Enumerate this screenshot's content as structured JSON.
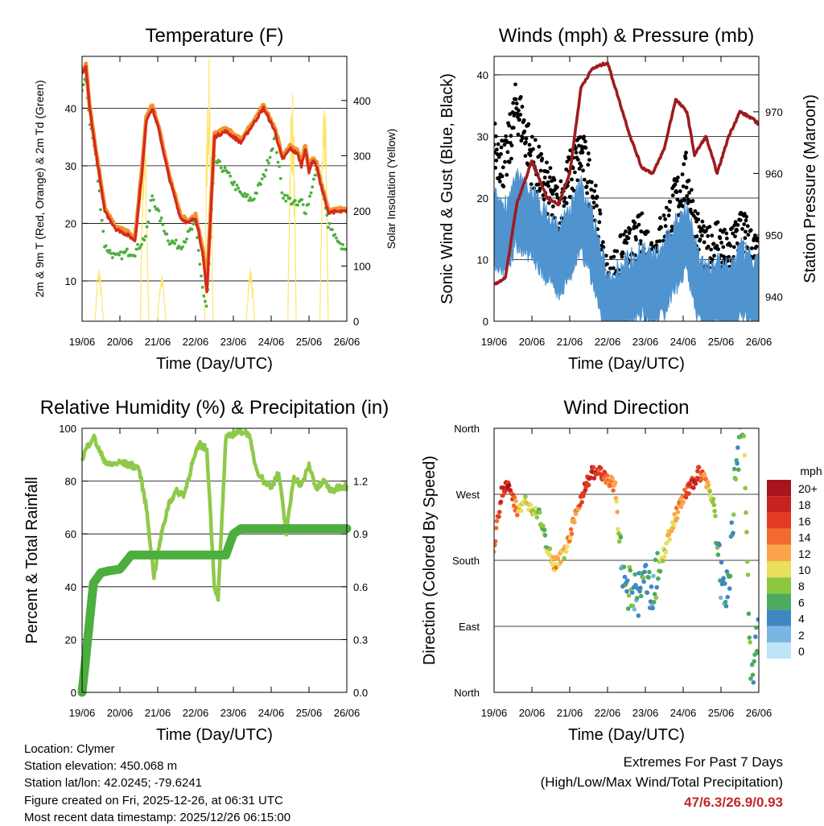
{
  "info": {
    "location": "Location: Clymer",
    "elevation": "Station elevation: 450.068 m",
    "latlon": "Station lat/lon: 42.0245; -79.6241",
    "created": "Figure created on Fri, 2025-12-26, at 06:31 UTC",
    "recent": "Most recent data timestamp: 2025/12/26 06:15:00"
  },
  "extremes": {
    "title": "Extremes For Past 7 Days",
    "subtitle": "(High/Low/Max Wind/Total Precipitation)",
    "values": "47/6.3/26.9/0.93"
  },
  "colors": {
    "red": "#d42a20",
    "orange": "#f2932e",
    "green": "#4caf3c",
    "yellow": "#ffe566",
    "black": "#000000",
    "blue": "#4f93cf",
    "maroon": "#9c1c1f",
    "rh": "#8fc94a",
    "precip": "#4cae3e",
    "extremes": "#c0272d"
  },
  "chart_data": [
    {
      "type": "line",
      "title": "Temperature (F)",
      "xlabel": "Time (Day/UTC)",
      "ylabel": "2m & 9m T (Red, Orange) & 2m Td (Green)",
      "ylabel_right": "Solar Insolation (Yellow)",
      "x": [
        0,
        0.1,
        0.2,
        0.35,
        0.6,
        0.9,
        1.2,
        1.4,
        1.6,
        1.7,
        1.85,
        2.0,
        2.3,
        2.6,
        2.8,
        3.0,
        3.1,
        3.2,
        3.3,
        3.5,
        3.8,
        4.2,
        4.5,
        4.8,
        5.1,
        5.3,
        5.5,
        5.7,
        5.8,
        5.9,
        6.0,
        6.1,
        6.2,
        6.3,
        6.5,
        6.8,
        7.0
      ],
      "xticks": [
        "19/06",
        "20/06",
        "21/06",
        "22/06",
        "23/06",
        "24/06",
        "25/06",
        "26/06"
      ],
      "ylim": [
        3,
        49
      ],
      "yticks": [
        10,
        20,
        30,
        40
      ],
      "y2lim": [
        0,
        480
      ],
      "y2ticks": [
        0,
        100,
        200,
        300,
        400
      ],
      "series": [
        {
          "name": "2m T",
          "color": "red",
          "values": [
            46,
            47,
            40,
            33,
            22,
            19,
            18,
            17,
            30,
            38,
            40,
            37,
            28,
            21,
            20,
            21,
            18,
            14,
            8,
            35,
            36,
            34,
            37,
            40,
            36,
            31,
            33,
            32,
            30,
            33,
            29,
            31,
            30,
            27,
            22,
            22,
            22
          ]
        },
        {
          "name": "9m T",
          "color": "orange",
          "values": [
            46.5,
            47.5,
            40.5,
            33.5,
            22.5,
            19.5,
            18.5,
            17.5,
            30.5,
            38.5,
            40.5,
            37.5,
            28.5,
            21.5,
            20.5,
            21.5,
            18.5,
            15,
            9,
            35.5,
            36.5,
            34.5,
            37.5,
            40.5,
            36.5,
            31.5,
            33.5,
            32.5,
            30.5,
            33.5,
            29.5,
            31.5,
            30.5,
            27.5,
            22.5,
            22.5,
            22.5
          ]
        },
        {
          "name": "2m Td",
          "color": "green",
          "values": [
            43,
            45,
            38,
            32,
            16,
            14,
            15,
            15,
            17,
            18,
            25,
            22,
            17,
            16,
            18,
            20,
            14,
            8,
            5,
            31,
            29,
            25,
            24,
            28,
            35,
            25,
            24,
            23,
            24,
            22,
            24,
            27,
            29,
            28,
            20,
            16,
            16
          ]
        }
      ],
      "solar": [
        {
          "peak_x": 0.45,
          "peak": 100
        },
        {
          "peak_x": 1.65,
          "peak": 360
        },
        {
          "peak_x": 2.1,
          "peak": 90
        },
        {
          "peak_x": 3.35,
          "peak": 480
        },
        {
          "peak_x": 4.45,
          "peak": 100
        },
        {
          "peak_x": 5.55,
          "peak": 440
        },
        {
          "peak_x": 6.4,
          "peak": 430
        }
      ]
    },
    {
      "type": "scatter",
      "title": "Winds (mph) & Pressure (mb)",
      "xlabel": "Time (Day/UTC)",
      "ylabel": "Sonic Wind & Gust (Blue, Black)",
      "ylabel_right": "Station Pressure (Maroon)",
      "x": [
        0,
        0.3,
        0.6,
        1.0,
        1.4,
        1.7,
        2.0,
        2.3,
        2.6,
        3.0,
        3.3,
        3.6,
        3.9,
        4.2,
        4.5,
        4.8,
        5.1,
        5.3,
        5.6,
        5.9,
        6.2,
        6.5,
        6.8,
        7.0
      ],
      "xticks": [
        "19/06",
        "20/06",
        "21/06",
        "22/06",
        "23/06",
        "24/06",
        "25/06",
        "26/06"
      ],
      "ylim": [
        0,
        43
      ],
      "yticks": [
        0,
        10,
        20,
        30,
        40
      ],
      "y2lim": [
        936,
        979
      ],
      "y2ticks": [
        940,
        950,
        960,
        970
      ],
      "series": [
        {
          "name": "Gust",
          "color": "black",
          "values": [
            27,
            24,
            34,
            25,
            20,
            17,
            22,
            26,
            20,
            4,
            8,
            10,
            12,
            9,
            13,
            18,
            22,
            14,
            9,
            12,
            8,
            14,
            10,
            8
          ]
        },
        {
          "name": "Wind",
          "color": "blue",
          "values": [
            15,
            14,
            18,
            16,
            12,
            10,
            13,
            17,
            12,
            2,
            4,
            5,
            7,
            5,
            7,
            11,
            14,
            8,
            3,
            5,
            3,
            7,
            5,
            4
          ]
        },
        {
          "name": "Pressure",
          "color": "maroon",
          "values": [
            942,
            943,
            955,
            962,
            956,
            955,
            960,
            974,
            977,
            978,
            972,
            966,
            961,
            960,
            964,
            972,
            970,
            963,
            966,
            960,
            966,
            970,
            969,
            968
          ]
        }
      ]
    },
    {
      "type": "line",
      "title": "Relative Humidity (%) & Precipitation (in)",
      "xlabel": "Time (Day/UTC)",
      "ylabel": "Percent & Total Rainfall",
      "x": [
        0,
        0.1,
        0.3,
        0.5,
        0.7,
        1.0,
        1.3,
        1.5,
        1.7,
        1.9,
        2.1,
        2.3,
        2.5,
        2.7,
        2.9,
        3.1,
        3.3,
        3.5,
        3.6,
        3.8,
        4.0,
        4.2,
        4.4,
        4.6,
        4.8,
        5.0,
        5.2,
        5.4,
        5.6,
        5.8,
        6.0,
        6.2,
        6.4,
        6.6,
        6.8,
        7.0
      ],
      "xticks": [
        "19/06",
        "20/06",
        "21/06",
        "22/06",
        "23/06",
        "24/06",
        "25/06",
        "26/06"
      ],
      "ylim": [
        0,
        100
      ],
      "yticks": [
        0,
        20,
        40,
        60,
        80,
        100
      ],
      "y2lim": [
        0,
        1.5
      ],
      "y2ticks": [
        0.0,
        0.3,
        0.6,
        0.9,
        1.2
      ],
      "ytick_labels_right": [
        "0.0",
        "0.3",
        "0.6",
        "0.9",
        "1.2"
      ],
      "series": [
        {
          "name": "RH",
          "color": "rh",
          "values": [
            88,
            92,
            97,
            90,
            86,
            87,
            86,
            85,
            70,
            44,
            60,
            72,
            76,
            75,
            86,
            94,
            92,
            40,
            36,
            96,
            98,
            99,
            98,
            85,
            80,
            78,
            83,
            60,
            82,
            78,
            86,
            77,
            80,
            76,
            78,
            78
          ]
        },
        {
          "name": "Precip",
          "color": "precip",
          "values": [
            0,
            0.2,
            0.62,
            0.68,
            0.69,
            0.7,
            0.78,
            0.78,
            0.78,
            0.78,
            0.78,
            0.78,
            0.78,
            0.78,
            0.78,
            0.78,
            0.78,
            0.78,
            0.78,
            0.78,
            0.9,
            0.93,
            0.93,
            0.93,
            0.93,
            0.93,
            0.93,
            0.93,
            0.93,
            0.93,
            0.93,
            0.93,
            0.93,
            0.93,
            0.93,
            0.93
          ]
        }
      ]
    },
    {
      "type": "scatter",
      "title": "Wind Direction",
      "xlabel": "Time (Day/UTC)",
      "ylabel": "Direction (Colored By Speed)",
      "xticks": [
        "19/06",
        "20/06",
        "21/06",
        "22/06",
        "23/06",
        "24/06",
        "25/06",
        "26/06"
      ],
      "yticks": [
        "North",
        "East",
        "South",
        "West",
        "North"
      ],
      "ylim": [
        0,
        360
      ],
      "x": [
        0,
        0.2,
        0.4,
        0.6,
        0.8,
        1.0,
        1.2,
        1.4,
        1.6,
        1.8,
        2.0,
        2.2,
        2.4,
        2.6,
        2.8,
        3.0,
        3.2,
        3.4,
        3.6,
        3.8,
        4.0,
        4.2,
        4.4,
        4.6,
        4.8,
        5.0,
        5.2,
        5.4,
        5.6,
        5.8,
        6.0,
        6.2,
        6.4,
        6.6,
        6.8,
        7.0
      ],
      "direction": [
        200,
        275,
        280,
        250,
        260,
        250,
        240,
        200,
        175,
        185,
        210,
        250,
        280,
        300,
        300,
        290,
        280,
        150,
        140,
        130,
        150,
        140,
        175,
        210,
        240,
        265,
        280,
        300,
        290,
        260,
        150,
        140,
        320,
        360,
        0,
        90
      ],
      "speed": [
        14,
        16,
        18,
        12,
        10,
        10,
        8,
        8,
        12,
        10,
        12,
        14,
        16,
        18,
        16,
        14,
        12,
        4,
        6,
        4,
        6,
        4,
        8,
        10,
        12,
        14,
        16,
        18,
        12,
        8,
        4,
        4,
        6,
        8,
        6,
        4
      ],
      "legend_title": "mph",
      "legend": [
        "20+",
        "18",
        "16",
        "14",
        "12",
        "10",
        "8",
        "6",
        "4",
        "2",
        "0"
      ],
      "legend_colors": [
        "#a8141b",
        "#c8211f",
        "#e23b22",
        "#f26a2d",
        "#fba54a",
        "#e8e05a",
        "#8dc63f",
        "#4cab5f",
        "#3f87c2",
        "#7bb5e3",
        "#bfe3f7"
      ]
    }
  ]
}
